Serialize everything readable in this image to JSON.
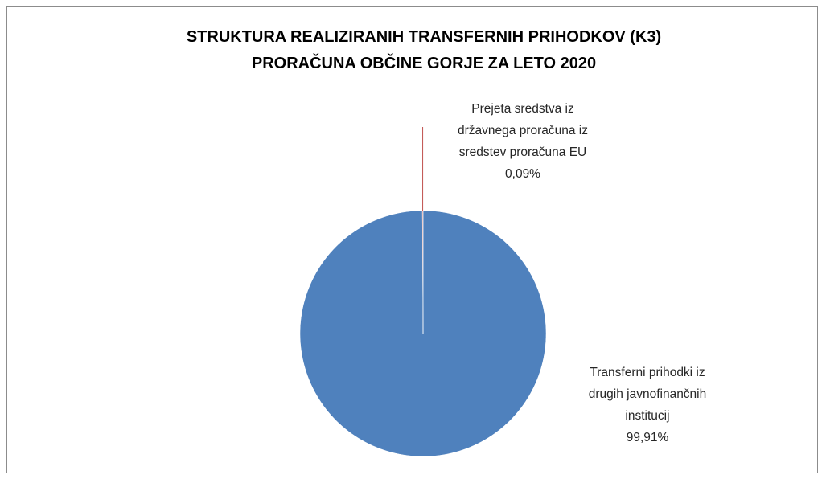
{
  "chart_data": {
    "type": "pie",
    "title": "STRUKTURA  REALIZIRANIH TRANSFERNIH PRIHODKOV (K3) PRORAČUNA OBČINE GORJE ZA LETO  2020",
    "categories": [
      "Transferni prihodki iz drugih javnofinančnih institucij",
      "Prejeta sredstva iz državnega proračuna iz sredstev proračuna EU"
    ],
    "values": [
      99.91,
      0.09
    ],
    "value_labels": [
      "99,91%",
      "0,09%"
    ],
    "colors": [
      "#4f81bd",
      "#c0504d"
    ]
  }
}
